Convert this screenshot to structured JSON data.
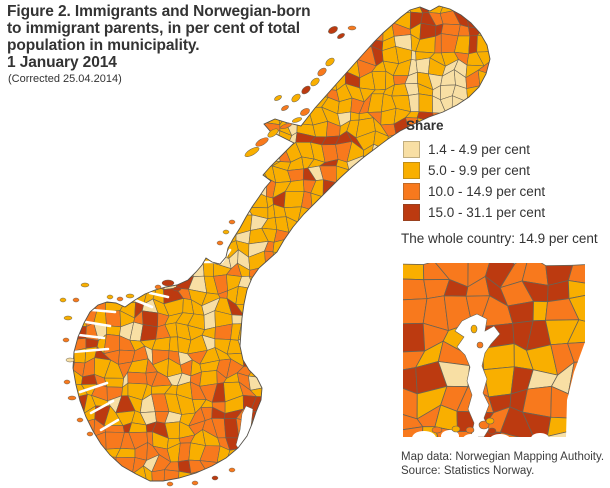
{
  "figure": {
    "title_lines": [
      "Figure 2. Immigrants and Norwegian-born",
      "to immigrant parents, in per cent of total",
      "population in municipality.",
      "1 January 2014"
    ],
    "corrected": "(Corrected 25.04.2014)"
  },
  "legend": {
    "heading": "Share",
    "items": [
      {
        "label": "1.4 - 4.9 per cent",
        "color": "#F8DFA4"
      },
      {
        "label": "5.0 - 9.9 per cent",
        "color": "#F9AF00"
      },
      {
        "label": "10.0 - 14.9 per cent",
        "color": "#F8791D"
      },
      {
        "label": "15.0 - 31.1 per cent",
        "color": "#BC3A10"
      }
    ],
    "note": "The whole country: 14.9 per cent"
  },
  "map": {
    "border_color": "#6A6354",
    "outline_color": "#55514A",
    "sea_color": "#FFFFFF"
  },
  "source": {
    "line1": "Map data: Norwegian Mapping Authoity.",
    "line2": "Source: Statistics Norway."
  }
}
